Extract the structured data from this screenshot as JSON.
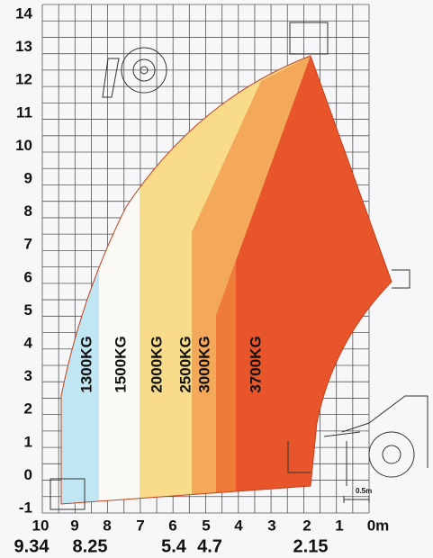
{
  "y_axis": {
    "labels": [
      "14",
      "13",
      "12",
      "11",
      "10",
      "9",
      "8",
      "7",
      "6",
      "5",
      "4",
      "3",
      "2",
      "1",
      "0",
      "-1"
    ]
  },
  "x_axis": {
    "labels": [
      "10",
      "9",
      "8",
      "7",
      "6",
      "5",
      "4",
      "3",
      "2",
      "1",
      "0m"
    ]
  },
  "reach_labels": [
    "9.34",
    "8.25",
    "5.4",
    "4.7",
    "2.15"
  ],
  "zones": [
    {
      "label": "1300KG"
    },
    {
      "label": "1500KG"
    },
    {
      "label": "2000KG"
    },
    {
      "label": "2500KG"
    },
    {
      "label": "3000KG"
    },
    {
      "label": "3700KG"
    }
  ],
  "scale_note": "0.5m"
}
